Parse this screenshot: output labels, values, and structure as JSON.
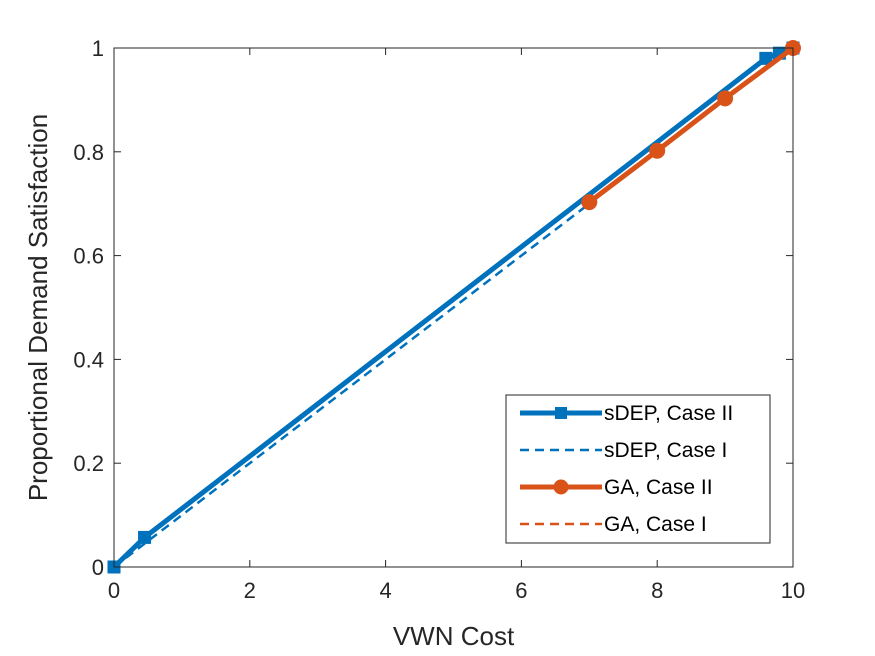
{
  "chart_data": {
    "type": "line",
    "xlabel": "VWN Cost",
    "ylabel": "Proportional Demand Satisfaction",
    "xlim": [
      0,
      10
    ],
    "ylim": [
      0,
      1
    ],
    "xticks": [
      0,
      2,
      4,
      6,
      8,
      10
    ],
    "yticks": [
      0,
      0.2,
      0.4,
      0.6,
      0.8,
      1
    ],
    "xtick_labels": [
      "0",
      "2",
      "4",
      "6",
      "8",
      "10"
    ],
    "ytick_labels": [
      "0",
      "0.2",
      "0.4",
      "0.6",
      "0.8",
      "1"
    ],
    "grid": false,
    "legend_position": "bottom-right",
    "series": [
      {
        "name": "sDEP, Case II",
        "color": "#0072BD",
        "line_style": "solid",
        "marker": "square",
        "x": [
          0,
          0.45,
          9.6,
          9.8,
          10
        ],
        "y": [
          0,
          0.057,
          0.98,
          0.99,
          1.0
        ]
      },
      {
        "name": "sDEP, Case I",
        "color": "#0072BD",
        "line_style": "dashed",
        "marker": "none",
        "x": [
          0,
          0.45,
          10
        ],
        "y": [
          0,
          0.045,
          1.0
        ]
      },
      {
        "name": "GA, Case II",
        "color": "#D95319",
        "line_style": "solid",
        "marker": "circle",
        "x": [
          7,
          8,
          9,
          10
        ],
        "y": [
          0.703,
          0.802,
          0.903,
          1.0
        ]
      },
      {
        "name": "GA, Case I",
        "color": "#D95319",
        "line_style": "dashed",
        "marker": "none",
        "x": [
          7,
          8,
          9,
          10
        ],
        "y": [
          0.703,
          0.802,
          0.903,
          1.0
        ]
      }
    ]
  }
}
